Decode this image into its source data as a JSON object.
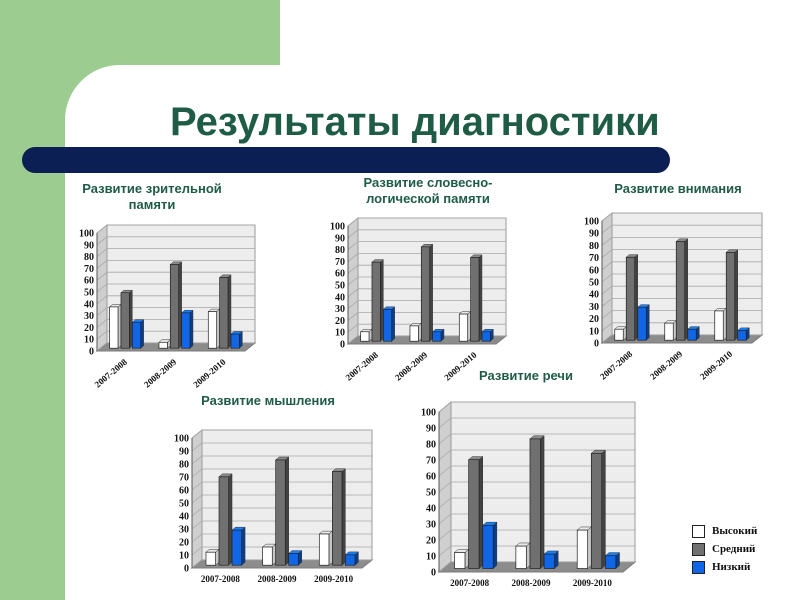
{
  "title": "Результаты диагностики",
  "legend": [
    {
      "label": "Высокий",
      "color": "#ffffff"
    },
    {
      "label": "Средний",
      "color": "#707070"
    },
    {
      "label": "Низкий",
      "color": "#1166e6"
    }
  ],
  "chart_data": [
    {
      "type": "bar",
      "title": "Развитие зрительной\nпамяти",
      "categories": [
        "2007-2008",
        "2008-2009",
        "2009-2010"
      ],
      "series": [
        {
          "name": "Высокий",
          "values": [
            35,
            5,
            31
          ]
        },
        {
          "name": "Средний",
          "values": [
            47,
            71,
            60
          ]
        },
        {
          "name": "Низкий",
          "values": [
            22,
            30,
            12
          ]
        }
      ],
      "ylim": [
        0,
        100
      ],
      "yticks": [
        0,
        10,
        20,
        30,
        40,
        50,
        60,
        70,
        80,
        90,
        100
      ],
      "grid": true
    },
    {
      "type": "bar",
      "title": "Развитие словесно-\nлогической памяти",
      "categories": [
        "2007-2008",
        "2008-2009",
        "2009-2010"
      ],
      "series": [
        {
          "name": "Высокий",
          "values": [
            8,
            13,
            23
          ]
        },
        {
          "name": "Средний",
          "values": [
            67,
            80,
            71
          ]
        },
        {
          "name": "Низкий",
          "values": [
            27,
            8,
            8
          ]
        }
      ],
      "ylim": [
        0,
        100
      ],
      "yticks": [
        0,
        10,
        20,
        30,
        40,
        50,
        60,
        70,
        80,
        90,
        100
      ],
      "grid": true
    },
    {
      "type": "bar",
      "title": "Развитие внимания",
      "categories": [
        "2007-2008",
        "2008-2009",
        "2009-2010"
      ],
      "series": [
        {
          "name": "Высокий",
          "values": [
            9,
            14,
            24
          ]
        },
        {
          "name": "Средний",
          "values": [
            68,
            81,
            72
          ]
        },
        {
          "name": "Низкий",
          "values": [
            27,
            9,
            8
          ]
        }
      ],
      "ylim": [
        0,
        100
      ],
      "yticks": [
        0,
        10,
        20,
        30,
        40,
        50,
        60,
        70,
        80,
        90,
        100
      ],
      "grid": true
    },
    {
      "type": "bar",
      "title": "Развитие мышления",
      "categories": [
        "2007-2008",
        "2008-2009",
        "2009-2010"
      ],
      "series": [
        {
          "name": "Высокий",
          "values": [
            10,
            14,
            24
          ]
        },
        {
          "name": "Средний",
          "values": [
            68,
            81,
            72
          ]
        },
        {
          "name": "Низкий",
          "values": [
            27,
            9,
            8
          ]
        }
      ],
      "ylim": [
        0,
        100
      ],
      "yticks": [
        0,
        10,
        20,
        30,
        40,
        50,
        60,
        70,
        80,
        90,
        100
      ],
      "grid": true
    },
    {
      "type": "bar",
      "title": "Развитие речи",
      "categories": [
        "2007-2008",
        "2008-2009",
        "2009-2010"
      ],
      "series": [
        {
          "name": "Высокий",
          "values": [
            10,
            14,
            24
          ]
        },
        {
          "name": "Средний",
          "values": [
            68,
            81,
            72
          ]
        },
        {
          "name": "Низкий",
          "values": [
            27,
            9,
            8
          ]
        }
      ],
      "ylim": [
        0,
        100
      ],
      "yticks": [
        0,
        10,
        20,
        30,
        40,
        50,
        60,
        70,
        80,
        90,
        100
      ],
      "grid": true
    }
  ]
}
